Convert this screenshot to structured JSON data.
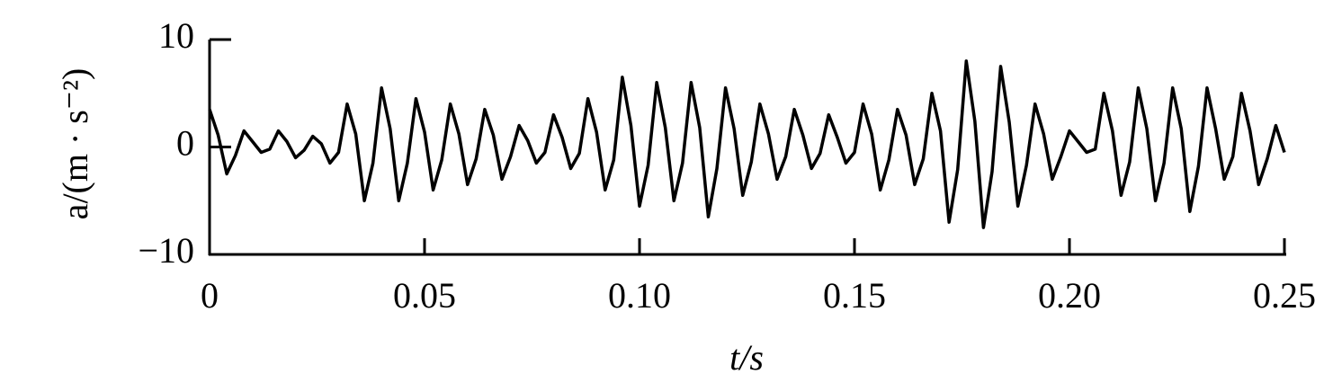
{
  "chart_data": {
    "type": "line",
    "x_label": "t/s",
    "y_label": "a/(m · s⁻²)",
    "x": [
      0,
      0.002,
      0.004,
      0.006,
      0.008,
      0.01,
      0.012,
      0.014,
      0.016,
      0.018,
      0.02,
      0.022,
      0.024,
      0.026,
      0.028,
      0.03,
      0.032,
      0.034,
      0.036,
      0.038,
      0.04,
      0.042,
      0.044,
      0.046,
      0.048,
      0.05,
      0.052,
      0.054,
      0.056,
      0.058,
      0.06,
      0.062,
      0.064,
      0.066,
      0.068,
      0.07,
      0.072,
      0.074,
      0.076,
      0.078,
      0.08,
      0.082,
      0.084,
      0.086,
      0.088,
      0.09,
      0.092,
      0.094,
      0.096,
      0.098,
      0.1,
      0.102,
      0.104,
      0.106,
      0.108,
      0.11,
      0.112,
      0.114,
      0.116,
      0.118,
      0.12,
      0.122,
      0.124,
      0.126,
      0.128,
      0.13,
      0.132,
      0.134,
      0.136,
      0.138,
      0.14,
      0.142,
      0.144,
      0.146,
      0.148,
      0.15,
      0.152,
      0.154,
      0.156,
      0.158,
      0.16,
      0.162,
      0.164,
      0.166,
      0.168,
      0.17,
      0.172,
      0.174,
      0.176,
      0.178,
      0.18,
      0.182,
      0.184,
      0.186,
      0.188,
      0.19,
      0.192,
      0.194,
      0.196,
      0.198,
      0.2,
      0.202,
      0.204,
      0.206,
      0.208,
      0.21,
      0.212,
      0.214,
      0.216,
      0.218,
      0.22,
      0.222,
      0.224,
      0.226,
      0.228,
      0.23,
      0.232,
      0.234,
      0.236,
      0.238,
      0.24,
      0.242,
      0.244,
      0.246,
      0.248,
      0.25
    ],
    "series": [
      {
        "color": "#000000",
        "values": [
          3.5,
          1.1,
          -2.5,
          -0.8,
          1.5,
          0.5,
          -0.5,
          -0.2,
          1.5,
          0.5,
          -1,
          -0.3,
          1,
          0.3,
          -1.5,
          -0.5,
          4,
          1.2,
          -5,
          -1.5,
          5.5,
          1.7,
          -5,
          -1.5,
          4.5,
          1.4,
          -4,
          -1.2,
          4,
          1.2,
          -3.5,
          -1.1,
          3.5,
          1.1,
          -3,
          -0.9,
          2,
          0.6,
          -1.5,
          -0.5,
          3,
          0.9,
          -2,
          -0.6,
          4.5,
          1.4,
          -4,
          -1.2,
          6.5,
          2,
          -5.5,
          -1.7,
          6,
          1.8,
          -5,
          -1.5,
          6,
          1.8,
          -6.5,
          -2,
          5.5,
          1.7,
          -4.5,
          -1.4,
          4,
          1.2,
          -3,
          -0.9,
          3.5,
          1.1,
          -2,
          -0.6,
          3,
          0.9,
          -1.5,
          -0.5,
          4,
          1.2,
          -4,
          -1.2,
          3.5,
          1.1,
          -3.5,
          -1.1,
          5,
          1.5,
          -7,
          -2.1,
          8,
          2.4,
          -7.5,
          -2.3,
          7.5,
          2.3,
          -5.5,
          -1.7,
          4,
          1.2,
          -3,
          -0.9,
          1.5,
          0.5,
          -0.5,
          -0.2,
          5,
          1.5,
          -4.5,
          -1.4,
          5.5,
          1.7,
          -5,
          -1.5,
          5.5,
          1.7,
          -6,
          -1.8,
          5.5,
          1.7,
          -3,
          -0.9,
          5,
          1.5,
          -3.5,
          -1.1,
          2,
          -0.5
        ]
      }
    ],
    "xlim": [
      0,
      0.25
    ],
    "ylim": [
      -10,
      10
    ],
    "xticks": [
      0,
      0.05,
      {
        "value": 0.1,
        "label": "0.10"
      },
      0.15,
      {
        "value": 0.2,
        "label": "0.20"
      },
      0.25
    ],
    "yticks": [
      {
        "value": -10,
        "label": "−10"
      },
      0,
      10
    ]
  }
}
